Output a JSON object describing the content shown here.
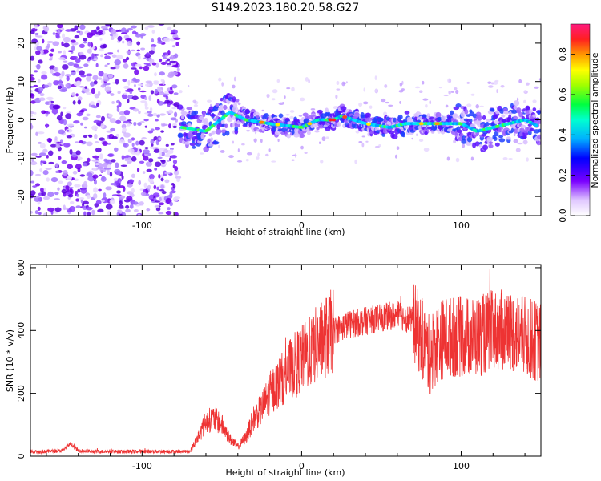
{
  "figure_title": "S149.2023.180.20.58.G27",
  "chart_data": [
    {
      "type": "heatmap",
      "title": "S149.2023.180.20.58.G27",
      "xlabel": "Height of straight line (km)",
      "ylabel": "Frequency (Hz)",
      "xlim": [
        -170,
        150
      ],
      "ylim": [
        -25,
        25
      ],
      "x_ticks": [
        -100,
        0,
        100
      ],
      "x_tick_labels": [
        "-100",
        "0",
        "100"
      ],
      "y_ticks": [
        -20,
        -10,
        0,
        10,
        20
      ],
      "y_tick_labels": [
        "-20",
        "-10",
        "0",
        "10",
        "20"
      ],
      "colorbar": {
        "label": "Normalized spectral amplitude",
        "range": [
          0,
          0.95
        ],
        "ticks": [
          0.0,
          0.2,
          0.4,
          0.6,
          0.8
        ],
        "tick_labels": [
          "0.0",
          "0.2",
          "0.4",
          "0.6",
          "0.8"
        ],
        "colormap": "rainbow (white-purple-blue-cyan-green-yellow-red-magenta)"
      },
      "ridge": {
        "description": "bright frequency trace near 0 Hz",
        "x": [
          -75,
          -60,
          -45,
          -35,
          -20,
          0,
          10,
          20,
          25,
          40,
          55,
          65,
          80,
          90,
          100,
          110,
          120,
          130,
          140,
          150
        ],
        "y": [
          -2,
          -3,
          2,
          0,
          -1,
          -2,
          0,
          0,
          1,
          -1,
          -2,
          -1,
          -1,
          -1,
          -1,
          -3,
          -2,
          -1,
          0,
          -2
        ]
      }
    },
    {
      "type": "line",
      "xlabel": "Height of straight line (km)",
      "ylabel": "SNR (10 * v/v)",
      "xlim": [
        -170,
        150
      ],
      "ylim": [
        0,
        610
      ],
      "x_ticks": [
        -100,
        0,
        100
      ],
      "x_tick_labels": [
        "-100",
        "0",
        "100"
      ],
      "y_ticks": [
        0,
        200,
        400,
        600
      ],
      "y_tick_labels": [
        "0",
        "200",
        "400",
        "600"
      ],
      "series": [
        {
          "color": "#ee3333",
          "x": [
            -170,
            -160,
            -150,
            -145,
            -140,
            -130,
            -120,
            -110,
            -100,
            -90,
            -80,
            -70,
            -65,
            -60,
            -55,
            -50,
            -45,
            -40,
            -35,
            -30,
            -25,
            -20,
            -15,
            -10,
            -5,
            0,
            5,
            10,
            20,
            30,
            40,
            50,
            60,
            70,
            75,
            80,
            85,
            90,
            100,
            110,
            120,
            130,
            140,
            150
          ],
          "y": [
            15,
            15,
            18,
            40,
            18,
            15,
            15,
            15,
            15,
            15,
            15,
            15,
            60,
            110,
            120,
            100,
            55,
            30,
            60,
            120,
            150,
            200,
            230,
            260,
            290,
            310,
            330,
            360,
            400,
            420,
            430,
            440,
            450,
            430,
            380,
            320,
            360,
            380,
            380,
            380,
            400,
            400,
            380,
            360
          ]
        }
      ]
    }
  ],
  "colors": {
    "line_series": "#ee3333",
    "axes": "#000000"
  }
}
